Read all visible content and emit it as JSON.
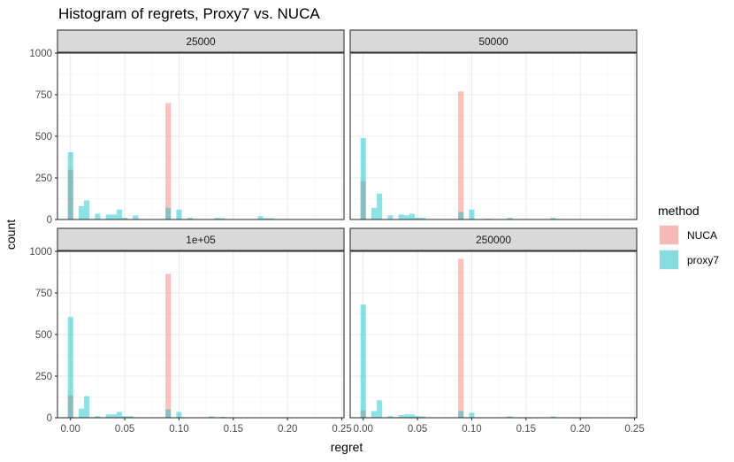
{
  "chart_data": {
    "type": "bar",
    "title": "Histogram of regrets, Proxy7 vs. NUCA",
    "xlabel": "regret",
    "ylabel": "count",
    "xlim": [
      -0.012,
      0.252
    ],
    "ylim": [
      0,
      1000
    ],
    "x_ticks": [
      0.0,
      0.05,
      0.1,
      0.15,
      0.2,
      0.25
    ],
    "x_tick_labels": [
      "0.00",
      "0.05",
      "0.10",
      "0.15",
      "0.20",
      "0.25"
    ],
    "y_ticks": [
      0,
      250,
      500,
      750,
      1000
    ],
    "y_tick_labels": [
      "0",
      "250",
      "500",
      "750",
      "1000"
    ],
    "bin_width": 0.005,
    "grid": true,
    "legend": {
      "title": "method",
      "position": "right",
      "items": [
        {
          "label": "NUCA",
          "color": "#F8766D"
        },
        {
          "label": "proxy7",
          "color": "#00BFC4"
        }
      ]
    },
    "panels": [
      {
        "label": "25000",
        "series": [
          {
            "name": "NUCA",
            "color": "#F8766D",
            "bins": [
              [
                0.0,
                300
              ],
              [
                0.09,
                700
              ]
            ]
          },
          {
            "name": "proxy7",
            "color": "#00BFC4",
            "bins": [
              [
                0.0,
                405
              ],
              [
                0.01,
                80
              ],
              [
                0.015,
                115
              ],
              [
                0.025,
                35
              ],
              [
                0.035,
                30
              ],
              [
                0.04,
                30
              ],
              [
                0.045,
                60
              ],
              [
                0.05,
                10
              ],
              [
                0.06,
                25
              ],
              [
                0.09,
                70
              ],
              [
                0.1,
                60
              ],
              [
                0.11,
                10
              ],
              [
                0.135,
                10
              ],
              [
                0.14,
                8
              ],
              [
                0.175,
                20
              ],
              [
                0.18,
                8
              ],
              [
                0.185,
                8
              ]
            ]
          }
        ]
      },
      {
        "label": "50000",
        "series": [
          {
            "name": "NUCA",
            "color": "#F8766D",
            "bins": [
              [
                0.0,
                230
              ],
              [
                0.09,
                770
              ]
            ]
          },
          {
            "name": "proxy7",
            "color": "#00BFC4",
            "bins": [
              [
                0.0,
                490
              ],
              [
                0.01,
                70
              ],
              [
                0.015,
                155
              ],
              [
                0.025,
                25
              ],
              [
                0.035,
                30
              ],
              [
                0.04,
                25
              ],
              [
                0.045,
                35
              ],
              [
                0.05,
                10
              ],
              [
                0.055,
                10
              ],
              [
                0.09,
                45
              ],
              [
                0.1,
                60
              ],
              [
                0.115,
                5
              ],
              [
                0.135,
                10
              ],
              [
                0.175,
                10
              ]
            ]
          }
        ]
      },
      {
        "label": "1e+05",
        "series": [
          {
            "name": "NUCA",
            "color": "#F8766D",
            "bins": [
              [
                0.0,
                135
              ],
              [
                0.09,
                865
              ]
            ]
          },
          {
            "name": "proxy7",
            "color": "#00BFC4",
            "bins": [
              [
                0.0,
                605
              ],
              [
                0.01,
                55
              ],
              [
                0.015,
                130
              ],
              [
                0.025,
                10
              ],
              [
                0.035,
                20
              ],
              [
                0.04,
                20
              ],
              [
                0.045,
                35
              ],
              [
                0.05,
                10
              ],
              [
                0.055,
                10
              ],
              [
                0.09,
                50
              ],
              [
                0.1,
                35
              ],
              [
                0.13,
                8
              ],
              [
                0.14,
                5
              ]
            ]
          }
        ]
      },
      {
        "label": "250000",
        "series": [
          {
            "name": "NUCA",
            "color": "#F8766D",
            "bins": [
              [
                0.0,
                45
              ],
              [
                0.09,
                955
              ]
            ]
          },
          {
            "name": "proxy7",
            "color": "#00BFC4",
            "bins": [
              [
                0.0,
                680
              ],
              [
                0.01,
                40
              ],
              [
                0.015,
                105
              ],
              [
                0.025,
                10
              ],
              [
                0.035,
                15
              ],
              [
                0.04,
                20
              ],
              [
                0.045,
                20
              ],
              [
                0.05,
                10
              ],
              [
                0.055,
                8
              ],
              [
                0.09,
                40
              ],
              [
                0.1,
                30
              ],
              [
                0.135,
                8
              ],
              [
                0.175,
                8
              ]
            ]
          }
        ]
      }
    ]
  }
}
